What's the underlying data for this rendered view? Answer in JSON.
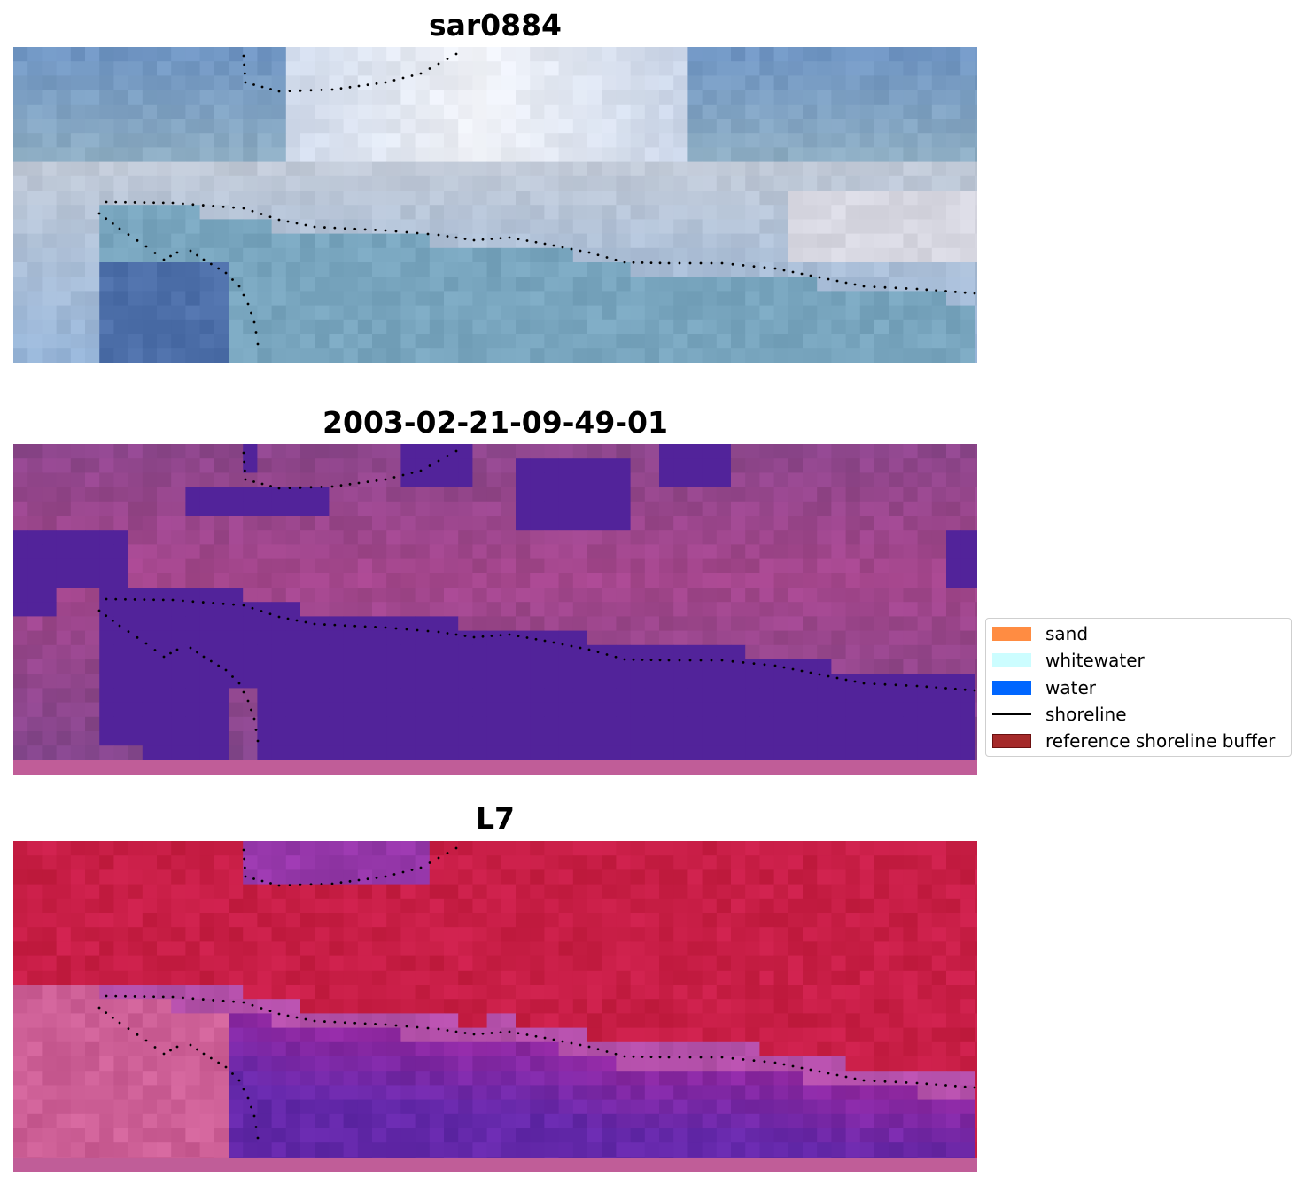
{
  "panels": [
    {
      "title": "sar0884",
      "kind": "rgb"
    },
    {
      "title": "2003-02-21-09-49-01",
      "kind": "classified"
    },
    {
      "title": "L7",
      "kind": "index"
    }
  ],
  "legend": {
    "items": [
      {
        "label": "sand",
        "type": "patch",
        "color": "#ff8c42"
      },
      {
        "label": "whitewater",
        "type": "patch",
        "color": "#ccfdff"
      },
      {
        "label": "water",
        "type": "patch",
        "color": "#0066ff"
      },
      {
        "label": "shoreline",
        "type": "line",
        "color": "#000000"
      },
      {
        "label": "reference shoreline buffer",
        "type": "patch",
        "color": "#a52a2a",
        "edge": "#6b1010"
      }
    ]
  },
  "colors": {
    "water_class": "#52239a",
    "land_class": "#a75996",
    "bottom_strip": "#c05d98",
    "shoreline_dots": "#000000"
  }
}
